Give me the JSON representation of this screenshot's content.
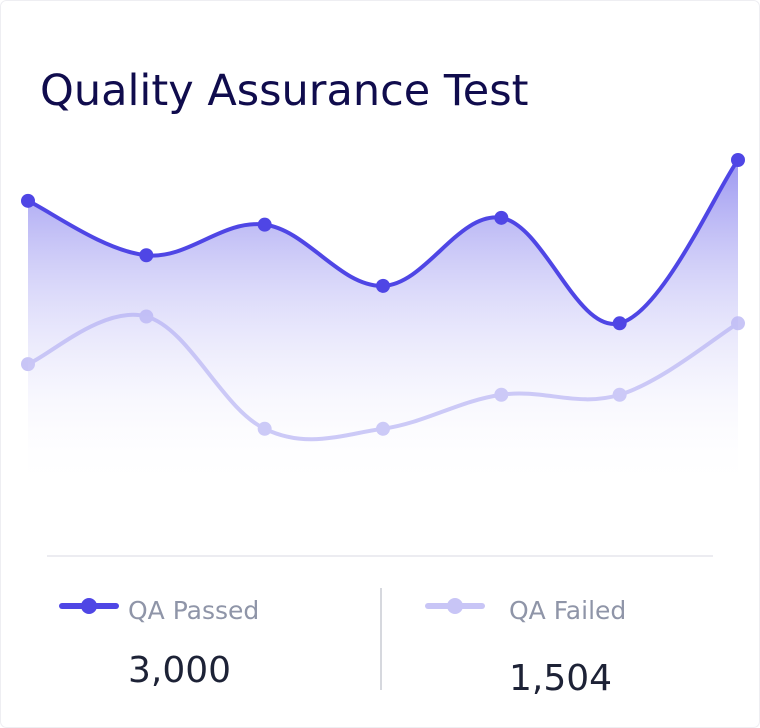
{
  "chart_data": {
    "type": "area-line",
    "title": "Quality Assurance Test",
    "categories": [
      null,
      null,
      null,
      null,
      null,
      null,
      null
    ],
    "series": [
      {
        "name": "QA Passed",
        "color": "#4f46e5",
        "values": [
          85,
          69,
          78,
          60,
          80,
          49,
          97
        ],
        "total": "3,000"
      },
      {
        "name": "QA Failed",
        "color": "#c8c5f6",
        "values": [
          37,
          51,
          18,
          18,
          28,
          28,
          49
        ],
        "total": "1,504"
      }
    ]
  }
}
